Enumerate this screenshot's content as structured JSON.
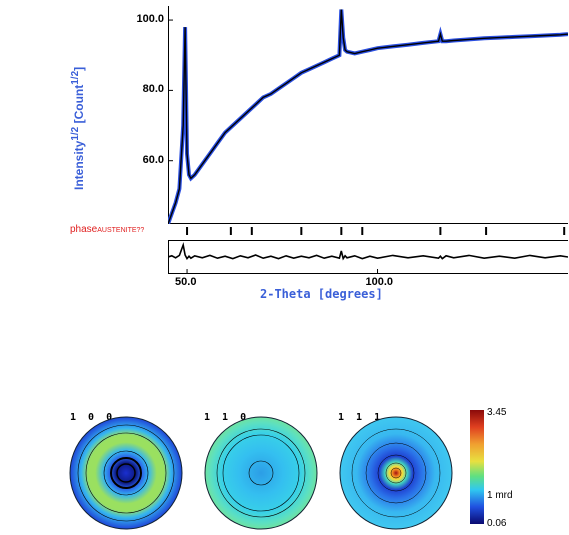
{
  "chart_data": [
    {
      "type": "line",
      "ylabel_html": "Intensity<sup>1/2</sup> [Count<sup>1/2</sup>]",
      "xlabel": "2-Theta [degrees]",
      "xlim": [
        45,
        150
      ],
      "ylim": [
        42,
        104
      ],
      "yticks": [
        "60.0",
        "80.0",
        "100.0"
      ],
      "xticks": [
        "50.0",
        "100.0"
      ],
      "phase_label": "phase",
      "phase_name": "AUSTENITE??",
      "peak_positions": [
        50.0,
        61.5,
        67.0,
        80.0,
        90.5,
        96.0,
        116.5,
        128.5,
        149.0
      ],
      "series": [
        {
          "color": "#2b4fe0",
          "x": [
            45,
            46,
            47,
            48,
            49,
            49.5,
            50,
            50.5,
            51,
            52,
            54,
            56,
            58,
            60,
            62,
            64,
            66,
            68,
            70,
            72,
            74,
            76,
            78,
            80,
            82,
            84,
            86,
            88,
            90,
            90.5,
            91,
            91.5,
            92,
            94,
            96,
            98,
            100,
            104,
            108,
            112,
            116,
            116.5,
            117,
            118,
            120,
            124,
            128,
            132,
            136,
            140,
            144,
            148,
            150
          ],
          "values": [
            42,
            45,
            48,
            52,
            70,
            98,
            62,
            56,
            55,
            56,
            59,
            62,
            65,
            68,
            70,
            72,
            74,
            76,
            78,
            79,
            80.5,
            82,
            83.5,
            85,
            86,
            87,
            88,
            89,
            90,
            103,
            95,
            91.5,
            91,
            90.5,
            91,
            91.5,
            92,
            92.5,
            93,
            93.5,
            94,
            96,
            94,
            94,
            94.2,
            94.5,
            94.8,
            95,
            95.2,
            95.4,
            95.6,
            95.8,
            96
          ]
        }
      ],
      "residual_series": [
        0,
        0.3,
        -0.2,
        0.4,
        3,
        0.5,
        -0.4,
        0.2,
        -0.3,
        0.3,
        -0.2,
        0.4,
        -0.3,
        0.2,
        -0.4,
        0.3,
        -0.2,
        0.5,
        -0.3,
        0.2,
        -0.4,
        0.3,
        -0.3,
        0.2,
        -0.2,
        0.4,
        -0.3,
        0.2,
        -0.3,
        1.5,
        -0.4,
        0.3,
        -0.2,
        0.3,
        -0.4,
        0.2,
        -0.3,
        0.4,
        -0.2,
        0.3,
        -0.3,
        0.2,
        -0.4,
        0.3,
        -0.2,
        0.4,
        -0.3,
        0.2,
        -0.3,
        0.4,
        -0.2,
        0.3,
        0
      ]
    },
    {
      "type": "heatmap",
      "pole_figures": [
        {
          "label": "1 0 0",
          "pattern": "rings-dense"
        },
        {
          "label": "1 1 0",
          "pattern": "flat"
        },
        {
          "label": "1 1 1",
          "pattern": "center-peak"
        }
      ],
      "colorbar": {
        "max": "3.45",
        "mid": "1 mrd",
        "min": "0.06"
      }
    }
  ]
}
